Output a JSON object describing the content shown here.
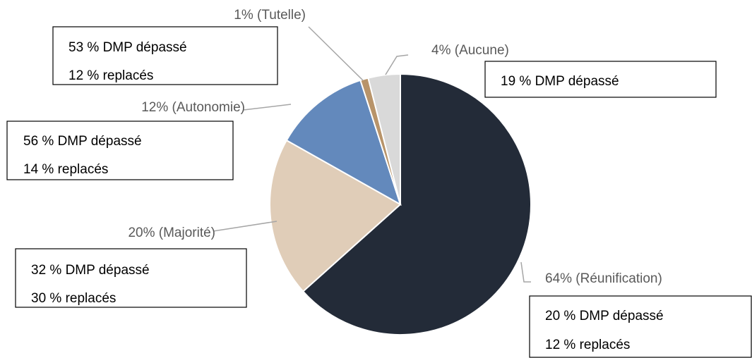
{
  "chart_data": {
    "type": "pie",
    "values": [
      64,
      20,
      12,
      1,
      4
    ],
    "value_labels": [
      "64% (Réunification)",
      "20% (Majorité)",
      "12% (Autonomie)",
      "1% (Tutelle)",
      "4% (Aucune)"
    ],
    "colors": [
      "#232b38",
      "#e0cdb8",
      "#6389bc",
      "#b8946a",
      "#d9d9d9"
    ],
    "annotations": [
      [
        "20 % DMP dépassé",
        "12 % replacés"
      ],
      [
        "32 % DMP dépassé",
        "30 % replacés"
      ],
      [
        "56 % DMP dépassé",
        "14 % replacés"
      ],
      [
        "53 % DMP dépassé",
        "12 % replacés"
      ],
      [
        "19 % DMP dépassé"
      ]
    ]
  }
}
